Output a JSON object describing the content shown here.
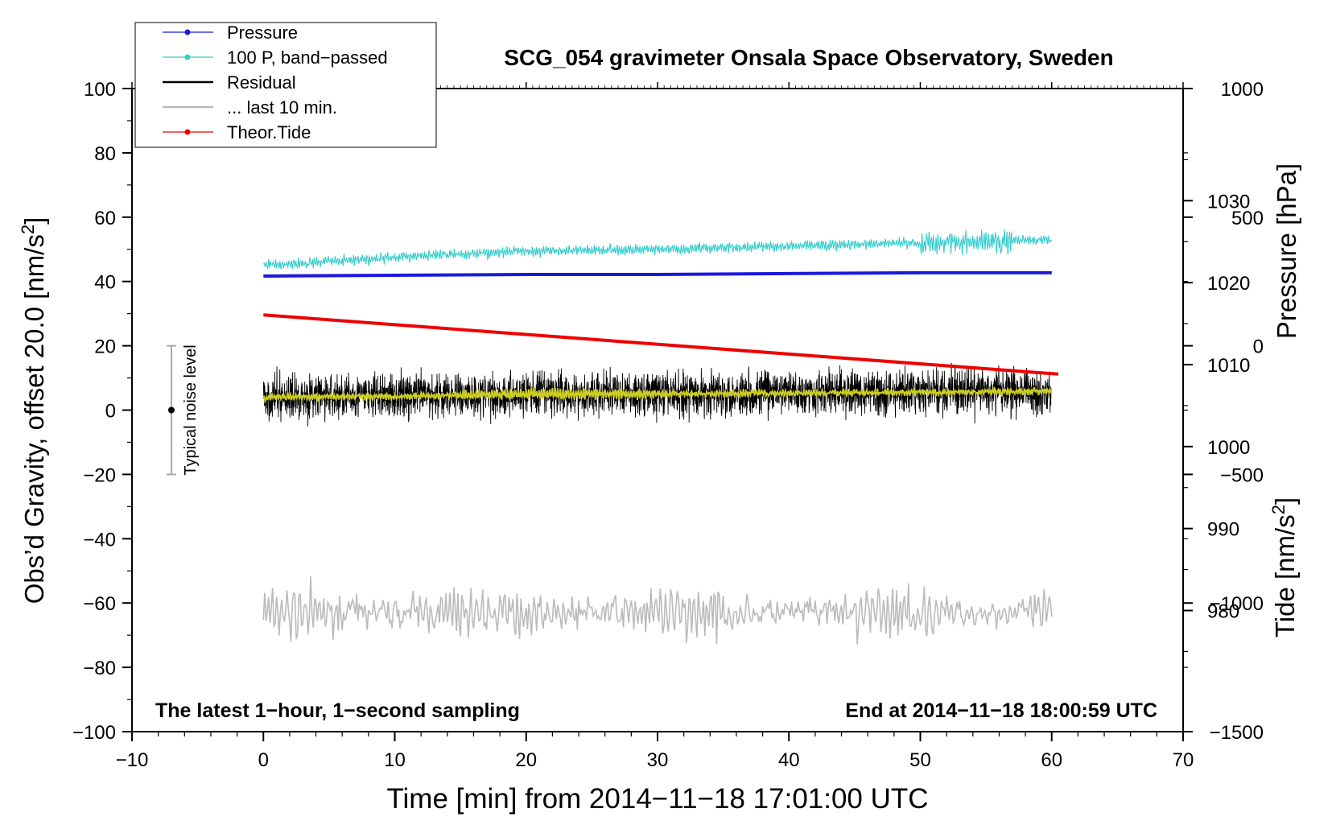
{
  "chart_data": {
    "type": "line",
    "title": "SCG_054 gravimeter Onsala Space Observatory, Sweden",
    "xlabel": "Time [min] from 2014−11−18 17:01:00 UTC",
    "ylabel_left": "Obs’d Gravity, offset 20.0 [nm/s²]",
    "ylabel_pressure": "Pressure [hPa]",
    "ylabel_tide": "Tide [nm/s²]",
    "xlim": [
      -10,
      70
    ],
    "ylim": [
      -100,
      100
    ],
    "pressure_lim": [
      1043.68,
      965.22
    ],
    "tide_lim": [
      -1500,
      1000
    ],
    "x_ticks": [
      "−10",
      "0",
      "10",
      "20",
      "30",
      "40",
      "50",
      "60",
      "70"
    ],
    "x_tick_values": [
      -10,
      0,
      10,
      20,
      30,
      40,
      50,
      60,
      70
    ],
    "y_ticks": [
      "100",
      "80",
      "60",
      "40",
      "20",
      "0",
      "−20",
      "−40",
      "−60",
      "−80",
      "−100"
    ],
    "y_tick_values": [
      100,
      80,
      60,
      40,
      20,
      0,
      -20,
      -40,
      -60,
      -80,
      -100
    ],
    "pressure_ticks": [
      "1030",
      "1020",
      "1010",
      "1000",
      "990",
      "980"
    ],
    "pressure_tick_values": [
      1030,
      1020,
      1010,
      1000,
      990,
      980
    ],
    "tide_ticks": [
      "1000",
      "500",
      "0",
      "−500",
      "−1000",
      "−1500"
    ],
    "tide_tick_values": [
      1000,
      500,
      0,
      -500,
      -1000,
      -1500
    ],
    "legend": [
      {
        "name": "Pressure",
        "color": "#1a1adc",
        "marker": true
      },
      {
        "name": "100 P, band−passed",
        "color": "#33cccc",
        "marker": true
      },
      {
        "name": "Residual",
        "color": "#000000",
        "marker": false
      },
      {
        "name": "... last 10 min.",
        "color": "#bbbbbb",
        "marker": false
      },
      {
        "name": "Theor.Tide",
        "color": "#ee0000",
        "marker": true
      }
    ],
    "series": [
      {
        "name": "Pressure",
        "axis": "pressure",
        "color": "#1a1adc",
        "x": [
          0,
          10,
          20,
          30,
          40,
          50,
          60
        ],
        "values": [
          1020.8,
          1020.9,
          1021.0,
          1021.0,
          1021.1,
          1021.2,
          1021.2
        ]
      },
      {
        "name": "100 P, band−passed",
        "axis": "gravity",
        "color": "#33cccc",
        "x": [
          0,
          10,
          20,
          30,
          40,
          50,
          60
        ],
        "values": [
          45,
          47.5,
          49.5,
          50,
          51,
          52,
          53
        ]
      },
      {
        "name": "Residual",
        "axis": "gravity",
        "color": "#000000",
        "x": [
          0,
          10,
          20,
          30,
          40,
          50,
          60
        ],
        "values": [
          4,
          4.5,
          5,
          5,
          5.5,
          5.5,
          6
        ]
      },
      {
        "name": "Residual smoothed",
        "axis": "gravity",
        "color": "#cccc22",
        "x": [
          0,
          10,
          20,
          30,
          40,
          50,
          60
        ],
        "values": [
          4,
          4.3,
          5,
          5,
          5.3,
          5.5,
          6
        ]
      },
      {
        "name": "... last 10 min.",
        "axis": "gravity",
        "color": "#bbbbbb",
        "x": [
          0,
          10,
          20,
          30,
          40,
          50,
          60
        ],
        "values": [
          -63,
          -63,
          -63,
          -63,
          -63,
          -63,
          -63
        ]
      },
      {
        "name": "Theor.Tide",
        "axis": "tide",
        "color": "#ee0000",
        "x": [
          0,
          60.5
        ],
        "values": [
          120,
          -110
        ]
      }
    ],
    "noise_bar": {
      "x": -7,
      "center": 0,
      "low": -20,
      "high": 20,
      "label": "Typical noise level"
    },
    "annotations": {
      "left": "The latest 1−hour, 1−second sampling",
      "right": "End at 2014−11−18 18:00:59 UTC"
    }
  }
}
